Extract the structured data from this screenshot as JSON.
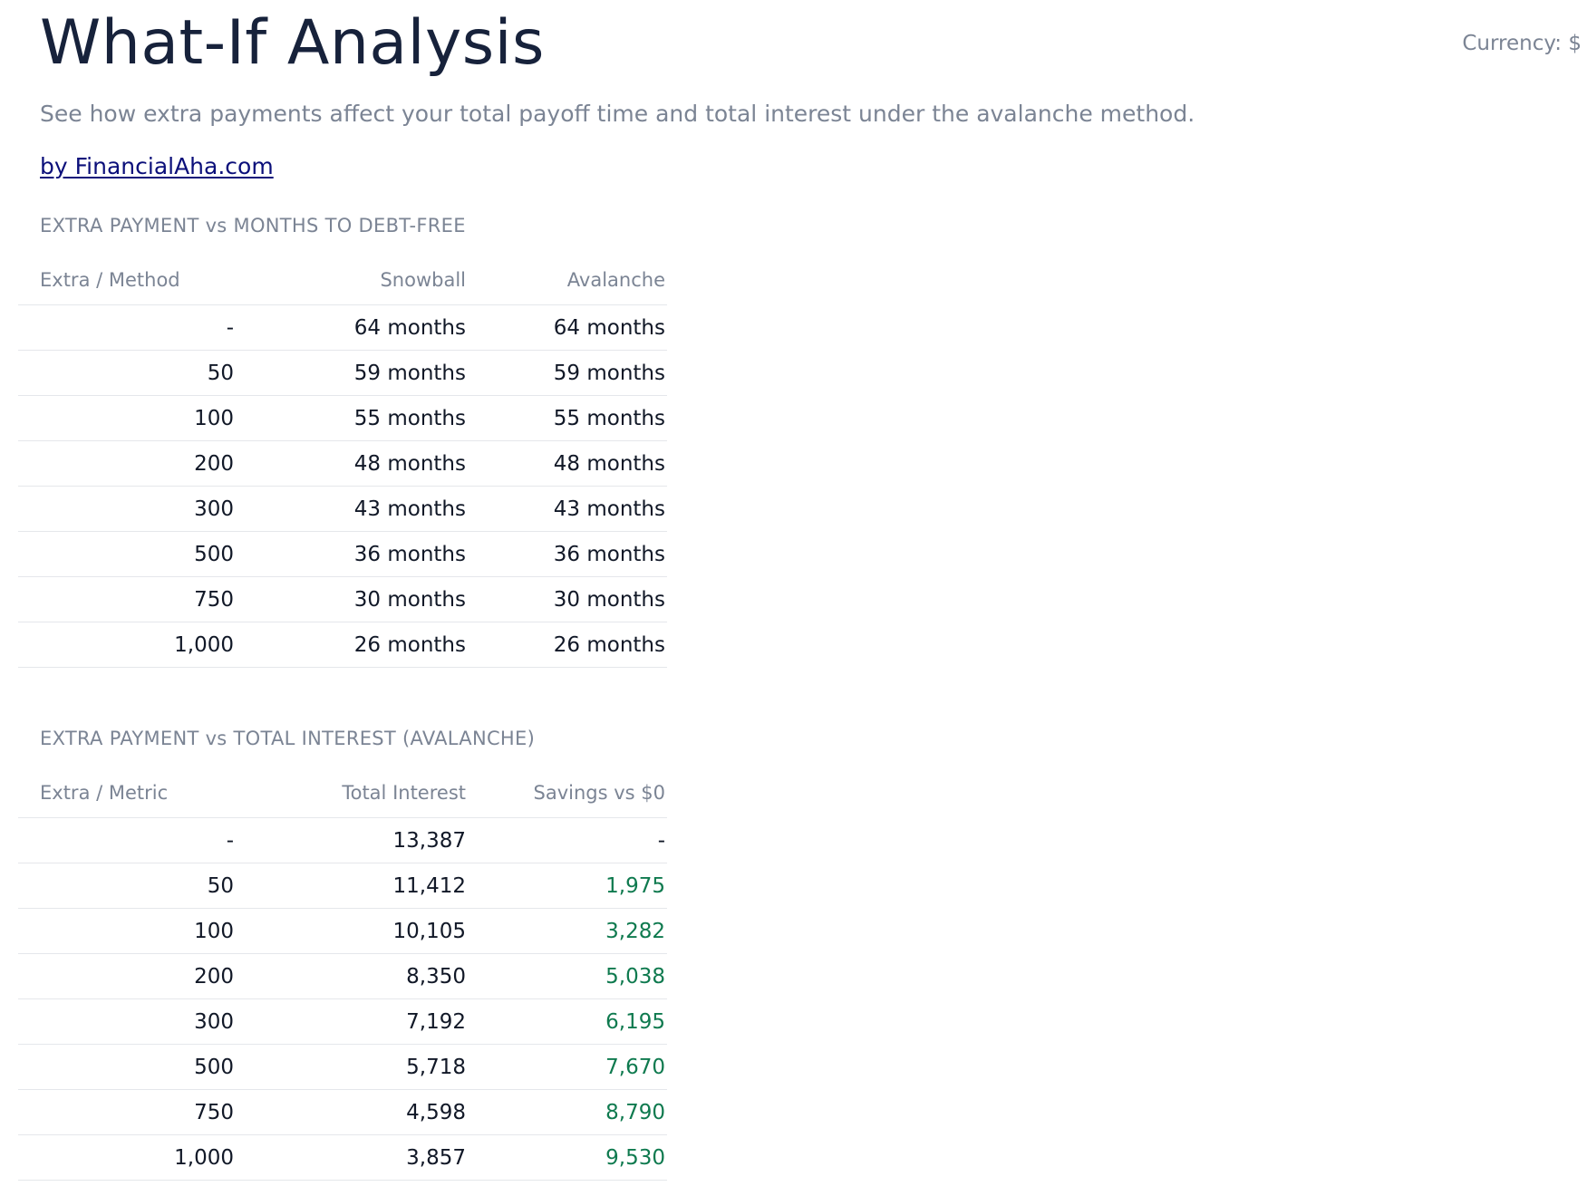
{
  "header": {
    "title": "What-If Analysis",
    "currency": "Currency: $",
    "subtitle": "See how extra payments affect your total payoff time and total interest under the avalanche method.",
    "byline": "by FinancialAha.com"
  },
  "months_table": {
    "section_title": "EXTRA PAYMENT vs MONTHS TO DEBT-FREE",
    "columns": [
      "Extra / Method",
      "Snowball",
      "Avalanche"
    ],
    "rows": [
      {
        "extra": "-",
        "snowball": "64 months",
        "avalanche": "64 months"
      },
      {
        "extra": "50",
        "snowball": "59 months",
        "avalanche": "59 months"
      },
      {
        "extra": "100",
        "snowball": "55 months",
        "avalanche": "55 months"
      },
      {
        "extra": "200",
        "snowball": "48 months",
        "avalanche": "48 months"
      },
      {
        "extra": "300",
        "snowball": "43 months",
        "avalanche": "43 months"
      },
      {
        "extra": "500",
        "snowball": "36 months",
        "avalanche": "36 months"
      },
      {
        "extra": "750",
        "snowball": "30 months",
        "avalanche": "30 months"
      },
      {
        "extra": "1,000",
        "snowball": "26 months",
        "avalanche": "26 months"
      }
    ]
  },
  "interest_table": {
    "section_title": "EXTRA PAYMENT vs TOTAL INTEREST (AVALANCHE)",
    "columns": [
      "Extra / Metric",
      "Total Interest",
      "Savings vs $0"
    ],
    "rows": [
      {
        "extra": "-",
        "total_interest": "13,387",
        "savings": "-"
      },
      {
        "extra": "50",
        "total_interest": "11,412",
        "savings": "1,975"
      },
      {
        "extra": "100",
        "total_interest": "10,105",
        "savings": "3,282"
      },
      {
        "extra": "200",
        "total_interest": "8,350",
        "savings": "5,038"
      },
      {
        "extra": "300",
        "total_interest": "7,192",
        "savings": "6,195"
      },
      {
        "extra": "500",
        "total_interest": "5,718",
        "savings": "7,670"
      },
      {
        "extra": "750",
        "total_interest": "4,598",
        "savings": "8,790"
      },
      {
        "extra": "1,000",
        "total_interest": "3,857",
        "savings": "9,530"
      }
    ]
  },
  "colors": {
    "title": "#17223b",
    "muted": "#7b8494",
    "link": "#0b0f7a",
    "savings": "#0f7a4f",
    "rule": "#e5e7eb"
  }
}
